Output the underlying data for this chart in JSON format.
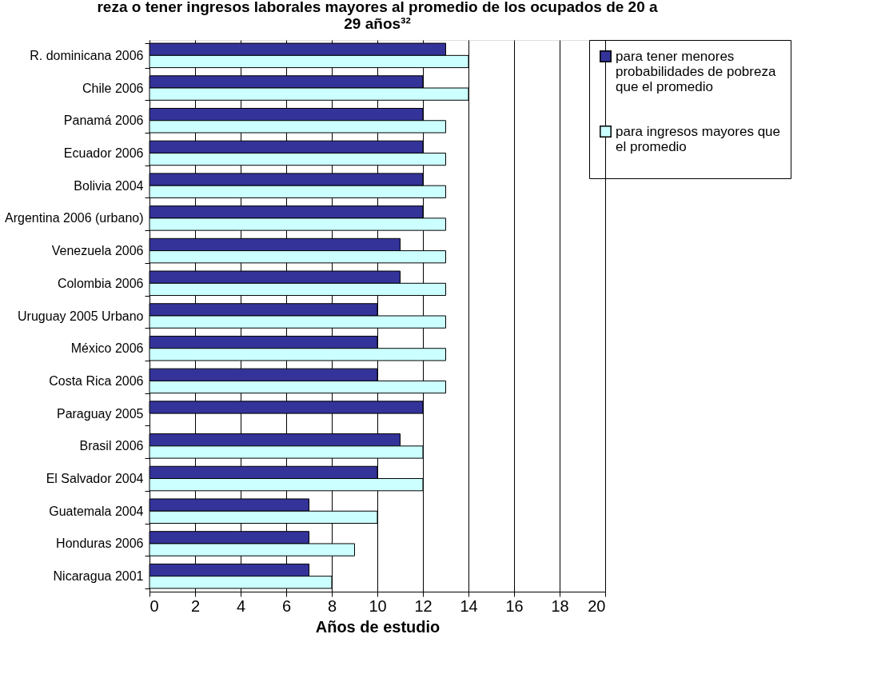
{
  "chart_data": {
    "type": "bar",
    "orientation": "horizontal",
    "title": [
      "reza o tener ingresos laborales mayores al promedio de los ocupados de 20 a",
      "29 años³²"
    ],
    "xlabel": "Años de estudio",
    "categories": [
      "R. dominicana 2006",
      "Chile 2006",
      "Panamá 2006",
      "Ecuador 2006",
      "Bolivia 2004",
      "Argentina 2006 (urbano)",
      "Venezuela 2006",
      "Colombia 2006",
      "Uruguay 2005 Urbano",
      "México 2006",
      "Costa Rica 2006",
      "Paraguay 2005",
      "Brasil 2006",
      "El Salvador 2004",
      "Guatemala 2004",
      "Honduras 2006",
      "Nicaragua 2001"
    ],
    "series": [
      {
        "name": "para tener menores probabilidades de pobreza que el promedio",
        "color": "#333399",
        "values": [
          13,
          12,
          12,
          12,
          12,
          12,
          11,
          11,
          10,
          10,
          10,
          12,
          11,
          10,
          7,
          7,
          7
        ]
      },
      {
        "name": "para ingresos mayores que el promedio",
        "color": "#ccffff",
        "values": [
          14,
          14,
          13,
          13,
          13,
          13,
          13,
          13,
          13,
          13,
          13,
          null,
          12,
          12,
          10,
          9,
          8
        ]
      }
    ],
    "xlim": [
      0,
      20
    ],
    "xticks": [
      0,
      2,
      4,
      6,
      8,
      10,
      12,
      14,
      16,
      18,
      20
    ],
    "grid": "x",
    "legend": "right"
  }
}
